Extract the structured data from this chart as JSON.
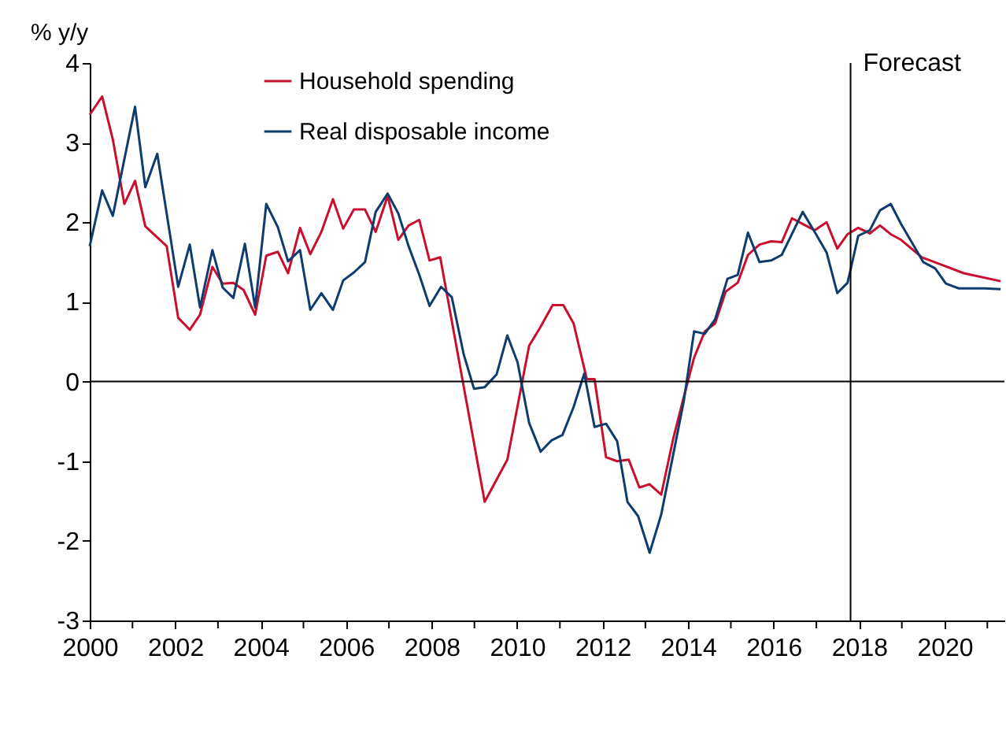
{
  "chart_data": {
    "type": "line",
    "ylabel": "% y/y",
    "xlim": [
      2000,
      2021.4
    ],
    "ylim": [
      -3,
      4
    ],
    "xticks": [
      2000,
      {
        "value": 2001,
        "label": null
      },
      2002,
      {
        "value": 2003,
        "label": null
      },
      2004,
      {
        "value": 2005,
        "label": null
      },
      2006,
      {
        "value": 2007,
        "label": null
      },
      2008,
      {
        "value": 2009,
        "label": null
      },
      2010,
      {
        "value": 2011,
        "label": null
      },
      2012,
      {
        "value": 2013,
        "label": null
      },
      2014,
      {
        "value": 2015,
        "label": null
      },
      2016,
      {
        "value": 2017,
        "label": null
      },
      2018,
      {
        "value": 2019,
        "label": null
      },
      2020,
      {
        "value": 2021,
        "label": null
      }
    ],
    "yticks": [
      -3,
      -2,
      -1,
      0,
      1,
      2,
      3,
      4
    ],
    "grid": false,
    "legend": "top left",
    "marker": "none",
    "line_style": "solid",
    "ref_lines": [
      {
        "axis": "y",
        "value": 0,
        "color": "#000000"
      },
      {
        "axis": "x",
        "value": 2017.8,
        "label": "Forecast",
        "color": "#000000"
      }
    ],
    "series": [
      {
        "name": "Household spending",
        "color": "#c8102e",
        "x": [
          2000.0,
          2000.29,
          2000.54,
          2000.81,
          2001.06,
          2001.3,
          2001.8,
          2002.07,
          2002.34,
          2002.58,
          2002.87,
          2003.11,
          2003.36,
          2003.6,
          2003.87,
          2004.13,
          2004.4,
          2004.64,
          2004.92,
          2005.16,
          2005.42,
          2005.69,
          2005.93,
          2006.18,
          2006.44,
          2006.69,
          2006.97,
          2007.22,
          2007.46,
          2007.71,
          2007.95,
          2008.2,
          2009.24,
          2009.77,
          2010.28,
          2010.53,
          2010.83,
          2011.08,
          2011.32,
          2011.63,
          2011.81,
          2012.08,
          2012.34,
          2012.61,
          2012.86,
          2013.1,
          2013.37,
          2013.65,
          2013.9,
          2014.14,
          2014.39,
          2014.63,
          2014.88,
          2015.16,
          2015.4,
          2015.67,
          2015.94,
          2016.19,
          2016.43,
          2016.96,
          2017.24,
          2017.49,
          2017.73,
          2017.98,
          2018.25,
          2018.49,
          2018.74,
          2018.98,
          2019.47,
          2019.96,
          2020.45,
          2021.31
        ],
        "values": [
          3.35,
          3.58,
          3.04,
          2.23,
          2.52,
          1.95,
          1.7,
          0.8,
          0.65,
          0.84,
          1.44,
          1.23,
          1.24,
          1.15,
          0.84,
          1.58,
          1.63,
          1.36,
          1.93,
          1.6,
          1.88,
          2.29,
          1.92,
          2.16,
          2.16,
          1.88,
          2.33,
          1.78,
          1.96,
          2.03,
          1.52,
          1.56,
          -1.51,
          -0.98,
          0.45,
          0.67,
          0.96,
          0.96,
          0.73,
          0.03,
          0.03,
          -0.95,
          -1.0,
          -0.98,
          -1.33,
          -1.29,
          -1.42,
          -0.72,
          -0.19,
          0.3,
          0.63,
          0.73,
          1.13,
          1.24,
          1.59,
          1.72,
          1.76,
          1.75,
          2.05,
          1.9,
          2.0,
          1.67,
          1.85,
          1.93,
          1.86,
          1.96,
          1.85,
          1.78,
          1.56,
          1.46,
          1.36,
          1.26
        ]
      },
      {
        "name": "Real disposable income",
        "color": "#0e3c6e",
        "x": [
          2000.0,
          2000.29,
          2000.54,
          2001.06,
          2001.3,
          2001.58,
          2002.07,
          2002.34,
          2002.58,
          2002.87,
          2003.11,
          2003.36,
          2003.63,
          2003.87,
          2004.13,
          2004.4,
          2004.64,
          2004.92,
          2005.16,
          2005.42,
          2005.69,
          2005.93,
          2006.18,
          2006.44,
          2006.69,
          2006.97,
          2007.22,
          2007.46,
          2007.71,
          2007.95,
          2008.22,
          2008.47,
          2008.75,
          2008.99,
          2009.24,
          2009.52,
          2009.77,
          2010.01,
          2010.28,
          2010.55,
          2010.8,
          2011.06,
          2011.32,
          2011.57,
          2011.81,
          2012.08,
          2012.34,
          2012.58,
          2012.83,
          2013.1,
          2013.37,
          2013.65,
          2013.9,
          2014.14,
          2014.39,
          2014.63,
          2014.92,
          2015.16,
          2015.4,
          2015.67,
          2015.94,
          2016.19,
          2016.68,
          2016.96,
          2017.24,
          2017.49,
          2017.73,
          2017.98,
          2018.25,
          2018.49,
          2018.74,
          2018.98,
          2019.23,
          2019.5,
          2019.78,
          2020.03,
          2020.33,
          2020.94,
          2021.31
        ],
        "values": [
          1.7,
          2.4,
          2.08,
          3.45,
          2.44,
          2.86,
          1.19,
          1.72,
          0.93,
          1.65,
          1.18,
          1.05,
          1.73,
          0.93,
          2.23,
          1.94,
          1.51,
          1.65,
          0.9,
          1.11,
          0.9,
          1.27,
          1.37,
          1.5,
          2.13,
          2.36,
          2.11,
          1.7,
          1.34,
          0.95,
          1.19,
          1.06,
          0.34,
          -0.09,
          -0.07,
          0.09,
          0.58,
          0.24,
          -0.52,
          -0.88,
          -0.74,
          -0.67,
          -0.32,
          0.1,
          -0.57,
          -0.53,
          -0.75,
          -1.51,
          -1.69,
          -2.15,
          -1.67,
          -0.92,
          -0.24,
          0.63,
          0.6,
          0.78,
          1.29,
          1.34,
          1.87,
          1.5,
          1.52,
          1.59,
          2.13,
          1.88,
          1.62,
          1.11,
          1.24,
          1.83,
          1.9,
          2.15,
          2.23,
          1.98,
          1.75,
          1.5,
          1.42,
          1.23,
          1.17,
          1.17,
          1.16
        ]
      }
    ]
  }
}
